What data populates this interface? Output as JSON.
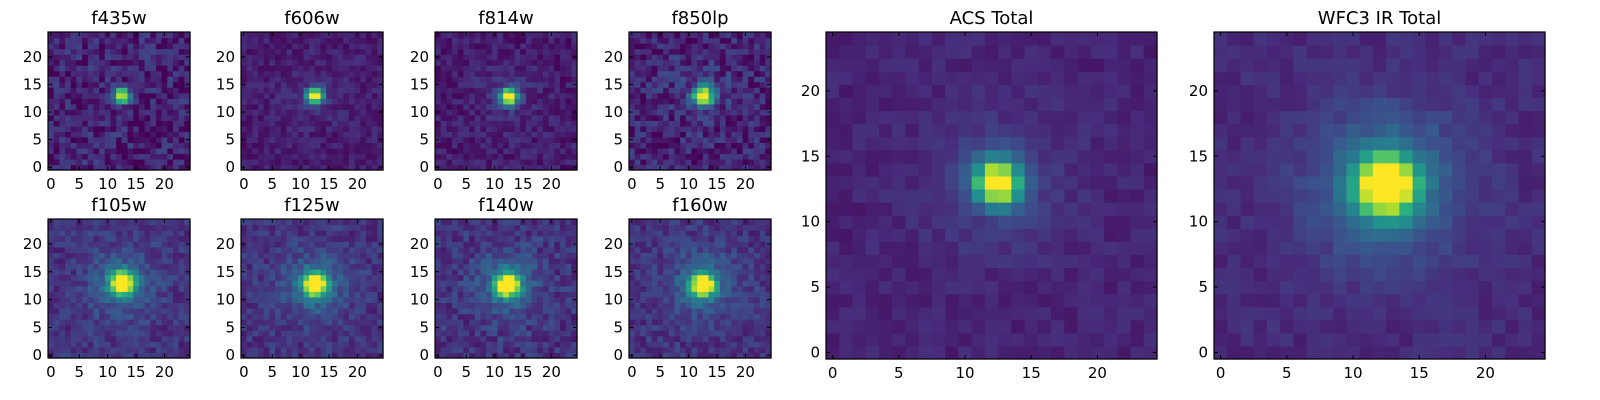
{
  "chart_data": [
    {
      "type": "heatmap",
      "title": "f435w",
      "xlim": [
        0,
        24
      ],
      "ylim": [
        0,
        24
      ],
      "xticks": [
        0,
        5,
        10,
        15,
        20
      ],
      "yticks": [
        0,
        5,
        10,
        15,
        20
      ],
      "colormap": "viridis",
      "peak": [
        12.5,
        13.0
      ],
      "sigma": 0.9,
      "halo": 0.0,
      "noise": 0.12,
      "background": 0.1
    },
    {
      "type": "heatmap",
      "title": "f606w",
      "xlim": [
        0,
        24
      ],
      "ylim": [
        0,
        24
      ],
      "xticks": [
        0,
        5,
        10,
        15,
        20
      ],
      "yticks": [
        0,
        5,
        10,
        15,
        20
      ],
      "colormap": "viridis",
      "peak": [
        12.5,
        13.0
      ],
      "sigma": 1.0,
      "halo": 0.05,
      "noise": 0.06,
      "background": 0.08
    },
    {
      "type": "heatmap",
      "title": "f814w",
      "xlim": [
        0,
        24
      ],
      "ylim": [
        0,
        24
      ],
      "xticks": [
        0,
        5,
        10,
        15,
        20
      ],
      "yticks": [
        0,
        5,
        10,
        15,
        20
      ],
      "colormap": "viridis",
      "peak": [
        12.5,
        12.8
      ],
      "sigma": 1.1,
      "halo": 0.06,
      "noise": 0.07,
      "background": 0.08
    },
    {
      "type": "heatmap",
      "title": "f850lp",
      "xlim": [
        0,
        24
      ],
      "ylim": [
        0,
        24
      ],
      "xticks": [
        0,
        5,
        10,
        15,
        20
      ],
      "yticks": [
        0,
        5,
        10,
        15,
        20
      ],
      "colormap": "viridis",
      "peak": [
        12.6,
        13.0
      ],
      "sigma": 1.2,
      "halo": 0.08,
      "noise": 0.12,
      "background": 0.1
    },
    {
      "type": "heatmap",
      "title": "f105w",
      "xlim": [
        0,
        24
      ],
      "ylim": [
        0,
        24
      ],
      "xticks": [
        0,
        5,
        10,
        15,
        20
      ],
      "yticks": [
        0,
        5,
        10,
        15,
        20
      ],
      "colormap": "viridis",
      "peak": [
        12.5,
        13.0
      ],
      "sigma": 1.4,
      "halo": 0.22,
      "noise": 0.08,
      "background": 0.15
    },
    {
      "type": "heatmap",
      "title": "f125w",
      "xlim": [
        0,
        24
      ],
      "ylim": [
        0,
        24
      ],
      "xticks": [
        0,
        5,
        10,
        15,
        20
      ],
      "yticks": [
        0,
        5,
        10,
        15,
        20
      ],
      "colormap": "viridis",
      "peak": [
        12.5,
        12.8
      ],
      "sigma": 1.4,
      "halo": 0.22,
      "noise": 0.08,
      "background": 0.15
    },
    {
      "type": "heatmap",
      "title": "f140w",
      "xlim": [
        0,
        24
      ],
      "ylim": [
        0,
        24
      ],
      "xticks": [
        0,
        5,
        10,
        15,
        20
      ],
      "yticks": [
        0,
        5,
        10,
        15,
        20
      ],
      "colormap": "viridis",
      "peak": [
        12.3,
        12.7
      ],
      "sigma": 1.4,
      "halo": 0.22,
      "noise": 0.09,
      "background": 0.15
    },
    {
      "type": "heatmap",
      "title": "f160w",
      "xlim": [
        0,
        24
      ],
      "ylim": [
        0,
        24
      ],
      "xticks": [
        0,
        5,
        10,
        15,
        20
      ],
      "yticks": [
        0,
        5,
        10,
        15,
        20
      ],
      "colormap": "viridis",
      "peak": [
        12.5,
        12.8
      ],
      "sigma": 1.4,
      "halo": 0.22,
      "noise": 0.08,
      "background": 0.15
    },
    {
      "type": "heatmap",
      "title": "ACS Total",
      "xlim": [
        0,
        24
      ],
      "ylim": [
        0,
        24
      ],
      "xticks": [
        0,
        5,
        10,
        15,
        20
      ],
      "yticks": [
        0,
        5,
        10,
        15,
        20
      ],
      "colormap": "viridis",
      "peak": [
        12.5,
        13.0
      ],
      "sigma": 1.2,
      "halo": 0.1,
      "noise": 0.04,
      "background": 0.1
    },
    {
      "type": "heatmap",
      "title": "WFC3 IR Total",
      "xlim": [
        0,
        24
      ],
      "ylim": [
        0,
        24
      ],
      "xticks": [
        0,
        5,
        10,
        15,
        20
      ],
      "yticks": [
        0,
        5,
        10,
        15,
        20
      ],
      "colormap": "viridis",
      "peak": [
        12.5,
        12.8
      ],
      "sigma": 1.5,
      "halo": 0.3,
      "noise": 0.04,
      "background": 0.12
    }
  ]
}
